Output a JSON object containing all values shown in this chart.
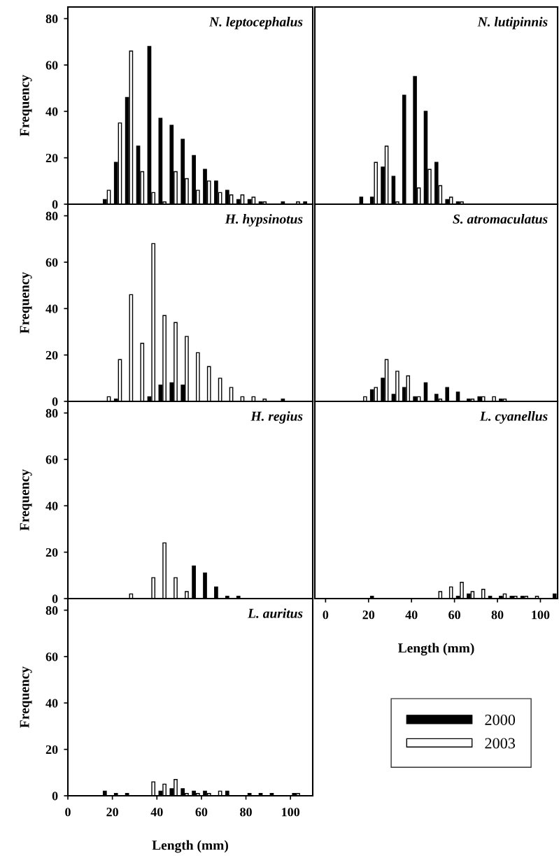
{
  "chart_data": [
    {
      "type": "bar",
      "title": "N. leptocephalus",
      "ylabel": "Frequency",
      "x": [
        17.5,
        22.5,
        27.5,
        32.5,
        37.5,
        42.5,
        47.5,
        52.5,
        57.5,
        62.5,
        67.5,
        72.5,
        77.5,
        82.5,
        87.5,
        92.5,
        97.5,
        102.5,
        107.5
      ],
      "xlim": [
        0,
        110
      ],
      "xticks": [
        0,
        20,
        40,
        60,
        80,
        100
      ],
      "ylim": [
        0,
        85
      ],
      "yticks": [
        0,
        20,
        40,
        60,
        80
      ],
      "tick_labels": "y",
      "legend": "bottom right",
      "series": [
        {
          "name": "2000",
          "color": "#000000",
          "values": [
            2,
            18,
            46,
            25,
            68,
            37,
            34,
            28,
            21,
            15,
            10,
            6,
            2,
            2,
            1,
            0,
            1,
            0,
            1
          ]
        },
        {
          "name": "2003",
          "color": "#ffffff",
          "values": [
            6,
            35,
            66,
            14,
            5,
            1,
            14,
            11,
            6,
            10,
            5,
            4,
            4,
            3,
            1,
            0,
            0,
            1,
            0
          ]
        }
      ]
    },
    {
      "type": "bar",
      "title": "N. lutipinnis",
      "x": [
        17.5,
        22.5,
        27.5,
        32.5,
        37.5,
        42.5,
        47.5,
        52.5,
        57.5,
        62.5,
        67.5,
        72.5,
        77.5,
        82.5,
        87.5,
        92.5,
        97.5,
        102.5,
        107.5
      ],
      "xlim": [
        -5,
        108
      ],
      "xticks": [
        0,
        20,
        40,
        60,
        80,
        100
      ],
      "ylim": [
        0,
        85
      ],
      "yticks": [
        0,
        20,
        40,
        60,
        80
      ],
      "tick_labels": false,
      "series": [
        {
          "name": "2000",
          "color": "#000000",
          "values": [
            3,
            3,
            16,
            12,
            47,
            55,
            40,
            18,
            2,
            1,
            0,
            0,
            0,
            0,
            0,
            0,
            0,
            0,
            0
          ]
        },
        {
          "name": "2003",
          "color": "#ffffff",
          "values": [
            0,
            18,
            25,
            1,
            0,
            7,
            15,
            8,
            3,
            1,
            0,
            0,
            0,
            0,
            0,
            0,
            0,
            0,
            0
          ]
        }
      ]
    },
    {
      "type": "bar",
      "title": "H. hypsinotus",
      "ylabel": "Frequency",
      "x": [
        17.5,
        22.5,
        27.5,
        32.5,
        37.5,
        42.5,
        47.5,
        52.5,
        57.5,
        62.5,
        67.5,
        72.5,
        77.5,
        82.5,
        87.5,
        92.5,
        97.5,
        102.5,
        107.5
      ],
      "xlim": [
        0,
        110
      ],
      "xticks": [
        0,
        20,
        40,
        60,
        80,
        100
      ],
      "ylim": [
        0,
        85
      ],
      "yticks": [
        0,
        20,
        40,
        60,
        80
      ],
      "tick_labels": "y",
      "series": [
        {
          "name": "2000",
          "color": "#000000",
          "values": [
            0,
            1,
            0,
            0,
            2,
            7,
            8,
            7,
            0,
            0,
            0,
            0,
            0,
            0,
            0,
            0,
            1,
            0,
            0
          ]
        },
        {
          "name": "2003",
          "color": "#ffffff",
          "values": [
            2,
            18,
            46,
            25,
            68,
            37,
            34,
            28,
            21,
            15,
            10,
            6,
            2,
            2,
            1,
            0,
            0,
            0,
            0
          ]
        }
      ]
    },
    {
      "type": "bar",
      "title": "S. atromaculatus",
      "x": [
        17.5,
        22.5,
        27.5,
        32.5,
        37.5,
        42.5,
        47.5,
        52.5,
        57.5,
        62.5,
        67.5,
        72.5,
        77.5,
        82.5,
        87.5,
        92.5,
        97.5,
        102.5,
        107.5
      ],
      "xlim": [
        -5,
        108
      ],
      "xticks": [
        0,
        20,
        40,
        60,
        80,
        100
      ],
      "ylim": [
        0,
        85
      ],
      "yticks": [
        0,
        20,
        40,
        60,
        80
      ],
      "tick_labels": false,
      "series": [
        {
          "name": "2000",
          "color": "#000000",
          "values": [
            0,
            5,
            10,
            3,
            6,
            2,
            8,
            3,
            6,
            4,
            1,
            2,
            0,
            1,
            0,
            0,
            0,
            0,
            0
          ]
        },
        {
          "name": "2003",
          "color": "#ffffff",
          "values": [
            2,
            6,
            18,
            13,
            11,
            2,
            0,
            1,
            0,
            0,
            1,
            2,
            2,
            1,
            0,
            0,
            0,
            0,
            0
          ]
        }
      ]
    },
    {
      "type": "bar",
      "title": "H. regius",
      "ylabel": "Frequency",
      "x": [
        17.5,
        22.5,
        27.5,
        32.5,
        37.5,
        42.5,
        47.5,
        52.5,
        57.5,
        62.5,
        67.5,
        72.5,
        77.5,
        82.5,
        87.5,
        92.5,
        97.5,
        102.5,
        107.5
      ],
      "xlim": [
        0,
        110
      ],
      "xticks": [
        0,
        20,
        40,
        60,
        80,
        100
      ],
      "ylim": [
        0,
        85
      ],
      "yticks": [
        0,
        20,
        40,
        60,
        80
      ],
      "tick_labels": "y",
      "series": [
        {
          "name": "2000",
          "color": "#000000",
          "values": [
            0,
            0,
            0,
            0,
            0,
            0,
            0,
            0,
            14,
            11,
            5,
            1,
            1,
            0,
            0,
            0,
            0,
            0,
            0
          ]
        },
        {
          "name": "2003",
          "color": "#ffffff",
          "values": [
            0,
            0,
            2,
            0,
            9,
            24,
            9,
            3,
            0,
            0,
            0,
            0,
            0,
            0,
            0,
            0,
            0,
            0,
            0
          ]
        }
      ]
    },
    {
      "type": "bar",
      "title": "L. cyanellus",
      "xlabel": "Length (mm)",
      "x": [
        17.5,
        22.5,
        27.5,
        32.5,
        37.5,
        42.5,
        47.5,
        52.5,
        57.5,
        62.5,
        67.5,
        72.5,
        77.5,
        82.5,
        87.5,
        92.5,
        97.5,
        102.5,
        107.5
      ],
      "xlim": [
        -5,
        108
      ],
      "xticks": [
        0,
        20,
        40,
        60,
        80,
        100
      ],
      "ylim": [
        0,
        85
      ],
      "yticks": [
        0,
        20,
        40,
        60,
        80
      ],
      "tick_labels": "x",
      "series": [
        {
          "name": "2000",
          "color": "#000000",
          "values": [
            0,
            1,
            0,
            0,
            0,
            0,
            0,
            0,
            0,
            1,
            2,
            0,
            1,
            1,
            1,
            1,
            0,
            0,
            2
          ]
        },
        {
          "name": "2003",
          "color": "#ffffff",
          "values": [
            0,
            0,
            0,
            0,
            0,
            0,
            0,
            3,
            5,
            7,
            3,
            4,
            0,
            2,
            1,
            1,
            1,
            0,
            0
          ]
        }
      ]
    },
    {
      "type": "bar",
      "title": "L. auritus",
      "xlabel": "Length (mm)",
      "ylabel": "Frequency",
      "x": [
        17.5,
        22.5,
        27.5,
        32.5,
        37.5,
        42.5,
        47.5,
        52.5,
        57.5,
        62.5,
        67.5,
        72.5,
        77.5,
        82.5,
        87.5,
        92.5,
        97.5,
        102.5,
        107.5
      ],
      "xlim": [
        0,
        110
      ],
      "xticks": [
        0,
        20,
        40,
        60,
        80,
        100
      ],
      "ylim": [
        0,
        85
      ],
      "yticks": [
        0,
        20,
        40,
        60,
        80
      ],
      "series": [
        {
          "name": "2000",
          "color": "#000000",
          "values": [
            2,
            1,
            1,
            0,
            0,
            2,
            3,
            3,
            2,
            2,
            0,
            2,
            0,
            1,
            1,
            1,
            0,
            1,
            0
          ]
        },
        {
          "name": "2003",
          "color": "#ffffff",
          "values": [
            0,
            0,
            0,
            0,
            6,
            5,
            7,
            1,
            1,
            1,
            2,
            0,
            0,
            0,
            0,
            0,
            0,
            1,
            0
          ]
        }
      ]
    }
  ]
}
